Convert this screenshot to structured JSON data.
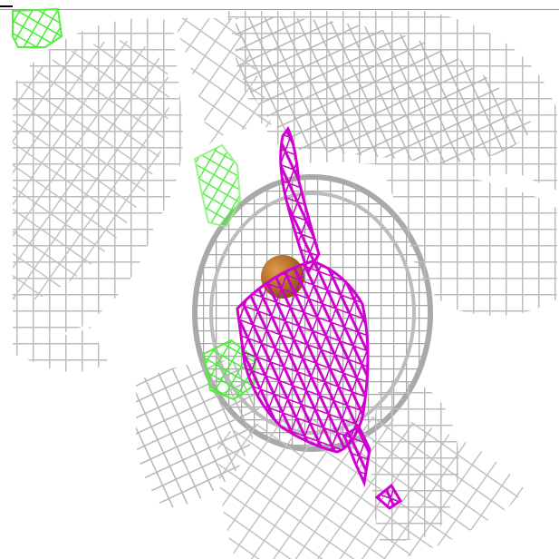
{
  "viewer": {
    "background": "#ffffff",
    "colors": {
      "grey_mesh": "#b9b9b9",
      "grey_mesh_dark": "#8f8f8f",
      "green_mesh": "#52f03c",
      "light_green_mesh": "#8ff27a",
      "magenta_mesh": "#d100d1",
      "orange_atom": "#b8722a"
    },
    "objects": [
      {
        "name": "grey-density-mesh",
        "color": "#b9b9b9"
      },
      {
        "name": "magenta-density-mesh",
        "color": "#d100d1"
      },
      {
        "name": "green-density-mesh",
        "color": "#52f03c"
      },
      {
        "name": "orange-atom-sphere",
        "color": "#b8722a"
      }
    ]
  }
}
